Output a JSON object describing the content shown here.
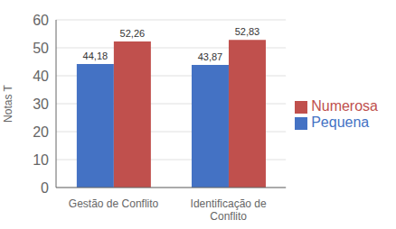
{
  "chart_data": {
    "type": "bar",
    "categories": [
      "Gestão de Conflito",
      "Identificação de\nConflito"
    ],
    "series": [
      {
        "name": "Pequena",
        "color": "#4472C4",
        "values": [
          44.18,
          43.87
        ],
        "value_labels": [
          "44,18",
          "43,87"
        ]
      },
      {
        "name": "Numerosa",
        "color": "#C0504D",
        "values": [
          52.26,
          52.83
        ],
        "value_labels": [
          "52,26",
          "52,83"
        ]
      }
    ],
    "ylabel": "Notas T",
    "ylim": [
      0,
      60
    ],
    "yticks": [
      0,
      10,
      20,
      30,
      40,
      50,
      60
    ],
    "grid": true,
    "legend": "right",
    "data_labels": true
  }
}
